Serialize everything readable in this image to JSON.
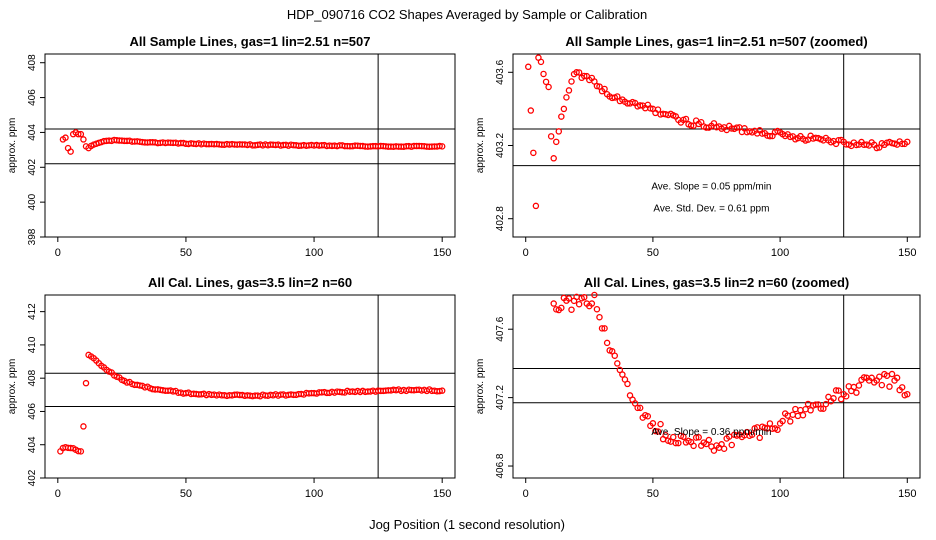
{
  "figure": {
    "title": "HDP_090716  CO2 Shapes Averaged by Sample or Calibration",
    "xlabel": "Jog Position (1 second resolution)"
  },
  "colors": {
    "points": "#ff0000",
    "lines": "#000000"
  },
  "chart_data": [
    {
      "type": "scatter",
      "title": "All Sample Lines, gas=1 lin=2.51 n=507",
      "ylabel": "approx. ppm",
      "xlim": [
        -5,
        155
      ],
      "ylim": [
        398,
        408.5
      ],
      "xticks": [
        0,
        50,
        100,
        150
      ],
      "yticks": [
        398,
        400,
        402,
        404,
        406,
        408
      ],
      "hlines": [
        404.2,
        402.2
      ],
      "vline": 125,
      "annotations": [],
      "series": [
        {
          "name": "sample",
          "x": [],
          "y": [],
          "shape": {
            "x0": 2,
            "x1": 150,
            "dips": [
              [
                2,
                403.6
              ],
              [
                3,
                403.7
              ],
              [
                4,
                403.1
              ],
              [
                5,
                402.9
              ],
              [
                6,
                403.9
              ],
              [
                7,
                404.0
              ],
              [
                8,
                403.9
              ],
              [
                9,
                403.9
              ],
              [
                10,
                403.6
              ],
              [
                11,
                403.2
              ],
              [
                12,
                403.1
              ],
              [
                14,
                403.3
              ],
              [
                18,
                403.5
              ],
              [
                23,
                403.55
              ],
              [
                40,
                403.4
              ],
              [
                70,
                403.3
              ],
              [
                100,
                403.25
              ],
              [
                125,
                403.2
              ],
              [
                150,
                403.2
              ]
            ],
            "noise": 0.03
          }
        }
      ]
    },
    {
      "type": "scatter",
      "title": "All Sample Lines, gas=1 lin=2.51 n=507 (zoomed)",
      "ylabel": "approx. ppm",
      "xlim": [
        -5,
        155
      ],
      "ylim": [
        402.7,
        403.7
      ],
      "xticks": [
        0,
        50,
        100,
        150
      ],
      "yticks": [
        402.8,
        403.2,
        403.6
      ],
      "hlines": [
        403.29,
        403.09
      ],
      "vline": 125,
      "annotations": [
        {
          "text": "Ave. Slope =  0.05  ppm/min",
          "x": 73,
          "y": 402.96
        },
        {
          "text": "Ave. Std. Dev. =  0.61  ppm",
          "x": 73,
          "y": 402.84
        }
      ],
      "series": [
        {
          "name": "sample zoomed",
          "x": [],
          "y": [],
          "shape": {
            "x0": 1,
            "x1": 150,
            "dips": [
              [
                1,
                403.63
              ],
              [
                3,
                403.16
              ],
              [
                4,
                402.87
              ],
              [
                5,
                403.68
              ],
              [
                9,
                403.52
              ],
              [
                10,
                403.25
              ],
              [
                11,
                403.13
              ],
              [
                12,
                403.22
              ],
              [
                15,
                403.4
              ],
              [
                18,
                403.55
              ],
              [
                20,
                403.6
              ],
              [
                23,
                403.58
              ],
              [
                27,
                403.55
              ],
              [
                32,
                403.48
              ],
              [
                40,
                403.43
              ],
              [
                50,
                403.4
              ],
              [
                60,
                403.34
              ],
              [
                75,
                403.3
              ],
              [
                90,
                403.28
              ],
              [
                105,
                403.25
              ],
              [
                115,
                403.24
              ],
              [
                125,
                403.22
              ],
              [
                135,
                403.2
              ],
              [
                145,
                403.21
              ],
              [
                150,
                403.22
              ]
            ],
            "noise": 0.018
          }
        }
      ]
    },
    {
      "type": "scatter",
      "title": "All Cal. Lines, gas=3.5 lin=2 n=60",
      "ylabel": "approx. ppm",
      "xlim": [
        -5,
        155
      ],
      "ylim": [
        402,
        413
      ],
      "xticks": [
        0,
        50,
        100,
        150
      ],
      "yticks": [
        402,
        404,
        406,
        408,
        410,
        412
      ],
      "hlines": [
        408.3,
        406.3
      ],
      "vline": 125,
      "annotations": [],
      "series": [
        {
          "name": "calibration",
          "x": [],
          "y": [],
          "shape": {
            "x0": 1,
            "x1": 150,
            "dips": [
              [
                1,
                403.6
              ],
              [
                2,
                403.8
              ],
              [
                3,
                403.85
              ],
              [
                5,
                403.8
              ],
              [
                7,
                403.7
              ],
              [
                9,
                403.6
              ],
              [
                10,
                405.1
              ],
              [
                11,
                407.7
              ],
              [
                12,
                409.4
              ],
              [
                14,
                409.2
              ],
              [
                16,
                408.9
              ],
              [
                20,
                408.4
              ],
              [
                25,
                407.9
              ],
              [
                30,
                407.6
              ],
              [
                40,
                407.3
              ],
              [
                50,
                407.1
              ],
              [
                60,
                407.0
              ],
              [
                75,
                406.95
              ],
              [
                90,
                407.0
              ],
              [
                100,
                407.1
              ],
              [
                115,
                407.2
              ],
              [
                125,
                407.25
              ],
              [
                140,
                407.3
              ],
              [
                150,
                407.25
              ]
            ],
            "noise": 0.05
          }
        }
      ]
    },
    {
      "type": "scatter",
      "title": "All Cal. Lines, gas=3.5 lin=2 n=60 (zoomed)",
      "ylabel": "approx. ppm",
      "xlim": [
        -5,
        155
      ],
      "ylim": [
        406.73,
        407.8
      ],
      "xticks": [
        0,
        50,
        100,
        150
      ],
      "yticks": [
        406.8,
        407.2,
        407.6
      ],
      "hlines": [
        407.37,
        407.17
      ],
      "vline": 125,
      "annotations": [
        {
          "text": "Ave. Slope =  0.36  ppm/min",
          "x": 73,
          "y": 406.98
        }
      ],
      "series": [
        {
          "name": "calibration zoomed",
          "x": [],
          "y": [],
          "shape": {
            "x0": 11,
            "x1": 150,
            "dips": [
              [
                11,
                407.75
              ],
              [
                24,
                407.75
              ],
              [
                27,
                407.8
              ],
              [
                29,
                407.67
              ],
              [
                32,
                407.52
              ],
              [
                36,
                407.4
              ],
              [
                40,
                407.28
              ],
              [
                45,
                407.14
              ],
              [
                50,
                407.05
              ],
              [
                55,
                406.98
              ],
              [
                65,
                406.94
              ],
              [
                75,
                406.92
              ],
              [
                85,
                406.97
              ],
              [
                95,
                407.02
              ],
              [
                105,
                407.1
              ],
              [
                115,
                407.16
              ],
              [
                125,
                407.22
              ],
              [
                135,
                407.3
              ],
              [
                145,
                407.3
              ],
              [
                150,
                407.22
              ]
            ],
            "noise": 0.04
          }
        }
      ]
    }
  ]
}
